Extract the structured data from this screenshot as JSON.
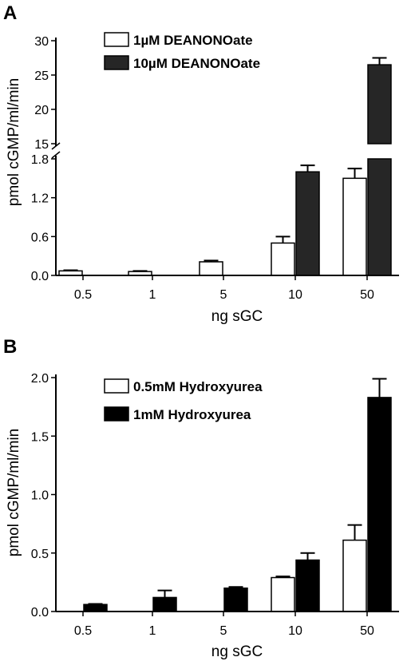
{
  "colors": {
    "open": "#ffffff",
    "series2_A": "#262626",
    "series2_B": "#000000",
    "axis": "#000000"
  },
  "chart_data": [
    {
      "panel": "A",
      "type": "bar",
      "xlabel": "ng sGC",
      "ylabel": "pmol cGMP/ml/min",
      "categories": [
        "0.5",
        "1",
        "5",
        "10",
        "50"
      ],
      "axis_break": {
        "lower_ylim": [
          0,
          1.8
        ],
        "upper_ylim": [
          15,
          30
        ]
      },
      "yticks_lower": [
        "0.0",
        "0.6",
        "1.2",
        "1.8"
      ],
      "yticks_upper": [
        "15",
        "20",
        "25",
        "30"
      ],
      "legend_position": "top-left",
      "series": [
        {
          "name": "1µM DEANONOate",
          "fill": "open",
          "values": [
            0.07,
            0.06,
            0.21,
            0.5,
            1.5
          ],
          "errors": [
            0.01,
            0.01,
            0.02,
            0.1,
            0.15
          ]
        },
        {
          "name": "10µM DEANONOate",
          "fill": "filled",
          "values": [
            null,
            null,
            null,
            1.6,
            26.5
          ],
          "errors": [
            null,
            null,
            null,
            0.1,
            1.0
          ]
        }
      ]
    },
    {
      "panel": "B",
      "type": "bar",
      "xlabel": "ng sGC",
      "ylabel": "pmol cGMP/ml/min",
      "categories": [
        "0.5",
        "1",
        "5",
        "10",
        "50"
      ],
      "ylim": [
        0,
        2.0
      ],
      "yticks": [
        "0.0",
        "0.5",
        "1.0",
        "1.5",
        "2.0"
      ],
      "legend_position": "top-left",
      "series": [
        {
          "name": "0.5mM Hydroxyurea",
          "fill": "open",
          "values": [
            null,
            null,
            null,
            0.29,
            0.61
          ],
          "errors": [
            null,
            null,
            null,
            0.01,
            0.13
          ]
        },
        {
          "name": "1mM Hydroxyurea",
          "fill": "filled",
          "values": [
            0.06,
            0.12,
            0.2,
            0.44,
            1.83
          ],
          "errors": [
            0.005,
            0.06,
            0.01,
            0.06,
            0.16
          ]
        }
      ]
    }
  ]
}
